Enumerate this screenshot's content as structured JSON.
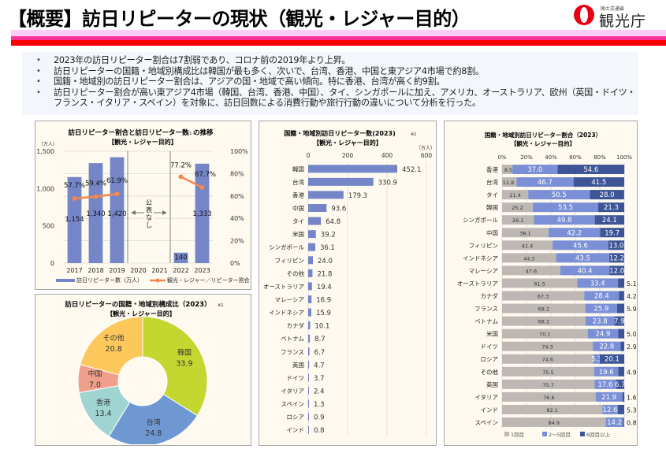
{
  "header": {
    "title": "【概要】訪日リピーターの現状（観光・レジャー目的）",
    "logo_small": "国土交通省",
    "logo_main": "観光庁",
    "accent_colors": {
      "band_light": "#ffccf5",
      "band_mid": "#ff3399",
      "band_red": "#ff0000",
      "logo_red": "#e60012"
    }
  },
  "summary": {
    "bullets": [
      "2023年の訪日リピーター割合は7割弱であり、コロナ前の2019年より上昇。",
      "訪日リピーターの国籍・地域別構成比は韓国が最も多く、次いで、台湾、香港、中国と東アジア4市場で約8割。",
      "国籍・地域別の訪日リピーター割合は、アジアの国・地域で高い傾向。特に香港、台湾が高く約9割。",
      "訪日リピーター割合が高い東アジア4市場（韓国、台湾、香港、中国）、タイ、シンガポールに加え、アメリカ、オーストラリア、欧州（英国・ドイツ・フランス・イタリア・スペイン）を対象に、訪日回数による消費行動や旅行行動の違いについて分析を行った。"
    ]
  },
  "chart_data": [
    {
      "id": "trend",
      "type": "bar+line",
      "title": "訪日リピーター割合と訪日リピーター数",
      "title_note": "※1",
      "subtitle": "の推移",
      "subtitle2": "【観光・レジャー目的】",
      "categories": [
        "2017",
        "2018",
        "2019",
        "2020",
        "2021",
        "2022",
        "2023"
      ],
      "series": [
        {
          "name": "訪日リピーター数（万人）",
          "type": "bar",
          "axis": "left",
          "color": "#7586c8",
          "values": [
            1154,
            1340,
            1420,
            null,
            null,
            140,
            1333
          ],
          "labels": [
            "1,154",
            "1,340",
            "1,420",
            "",
            "",
            "140",
            "1,333"
          ]
        },
        {
          "name": "観光・レジャー／リピーター割合",
          "type": "line",
          "axis": "right",
          "color": "#f4884d",
          "values": [
            57.7,
            59.4,
            61.9,
            null,
            null,
            77.2,
            67.7
          ],
          "labels": [
            "57.7%",
            "59.4%",
            "61.9%",
            "",
            "",
            "77.2%",
            "67.7%"
          ]
        }
      ],
      "left_axis": {
        "unit": "（万人）",
        "ylim": [
          0,
          1500
        ],
        "ticks": [
          "0",
          "500",
          "1,000",
          "1,500"
        ]
      },
      "right_axis": {
        "ylim": [
          0,
          100
        ],
        "ticks": [
          "0%",
          "20%",
          "40%",
          "60%",
          "80%",
          "100%"
        ]
      },
      "annotation": "公表なし",
      "grid": true,
      "legend": "bottom"
    },
    {
      "id": "donut",
      "type": "pie",
      "title": "訪日リピーターの国籍・地域別構成比（2023）",
      "title_note": "※1",
      "subtitle": "【観光・レジャー目的】",
      "slices": [
        {
          "label": "韓国",
          "value": 33.9,
          "color": "#c4d630"
        },
        {
          "label": "台湾",
          "value": 24.8,
          "color": "#6f98d2"
        },
        {
          "label": "香港",
          "value": 13.4,
          "color": "#9fd4d0"
        },
        {
          "label": "中国",
          "value": 7.0,
          "color": "#f0a08a"
        },
        {
          "label": "その他",
          "value": 20.8,
          "color": "#fcc85c"
        }
      ]
    },
    {
      "id": "hbar",
      "type": "bar",
      "orientation": "horizontal",
      "title": "国籍・地域別訪日リピーター数(2023)",
      "title_note": "※1",
      "subtitle": "【観光・レジャー目的】",
      "unit": "（万人）",
      "xlim": [
        0,
        600
      ],
      "ticks": [
        "0",
        "200",
        "400",
        "600"
      ],
      "color": "#7586c8",
      "categories": [
        "韓国",
        "台湾",
        "香港",
        "中国",
        "タイ",
        "米国",
        "シンガポール",
        "フィリピン",
        "その他",
        "オーストラリア",
        "マレーシア",
        "インドネシア",
        "カナダ",
        "ベトナム",
        "フランス",
        "英国",
        "ドイツ",
        "イタリア",
        "スペイン",
        "ロシア",
        "インド"
      ],
      "values": [
        452.1,
        330.9,
        179.3,
        93.6,
        64.8,
        39.2,
        36.1,
        24.0,
        21.8,
        19.4,
        16.9,
        15.9,
        10.1,
        8.7,
        6.7,
        4.7,
        3.7,
        2.4,
        1.3,
        0.9,
        0.8
      ],
      "labels": [
        "452.1",
        "330.9",
        "179.3",
        "93.6",
        "64.8",
        "39.2",
        "36.1",
        "24.0",
        "21.8",
        "19.4",
        "16.9",
        "15.9",
        "10.1",
        "8.7",
        "6.7",
        "4.7",
        "3.7",
        "2.4",
        "1.3",
        "0.9",
        "0.8"
      ],
      "grid": true
    },
    {
      "id": "stacked",
      "type": "bar",
      "orientation": "horizontal",
      "stacked": true,
      "title": "国籍・地域別訪日リピーター割合（2023）",
      "subtitle": "【観光・レジャー目的】",
      "xlim": [
        0,
        100
      ],
      "ticks": [
        "0%",
        "20%",
        "40%",
        "60%",
        "80%",
        "100%"
      ],
      "categories": [
        "香港",
        "台湾",
        "タイ",
        "韓国",
        "シンガポール",
        "中国",
        "フィリピン",
        "インドネシア",
        "マレーシア",
        "オーストラリア",
        "カナダ",
        "フランス",
        "ベトナム",
        "米国",
        "ドイツ",
        "ロシア",
        "その他",
        "英国",
        "イタリア",
        "インド",
        "スペイン"
      ],
      "series": [
        {
          "name": "1回目",
          "color": "#bdb8b4",
          "values": [
            8.5,
            11.8,
            21.4,
            25.2,
            26.1,
            38.1,
            41.4,
            44.3,
            47.6,
            61.5,
            67.3,
            68.2,
            68.2,
            70.1,
            74.3,
            74.6,
            75.5,
            75.7,
            76.6,
            82.1,
            84.9
          ]
        },
        {
          "name": "2～5回目",
          "color": "#7a8fd6",
          "values": [
            37.0,
            46.7,
            50.5,
            53.5,
            49.8,
            42.2,
            45.6,
            43.5,
            40.4,
            33.4,
            28.4,
            25.9,
            23.8,
            24.9,
            22.8,
            5.3,
            19.6,
            17.6,
            21.9,
            12.6,
            14.2
          ]
        },
        {
          "name": "6回目以上",
          "color": "#3d5596",
          "values": [
            54.6,
            41.5,
            28.0,
            21.3,
            24.1,
            19.7,
            13.0,
            12.2,
            12.0,
            5.1,
            4.2,
            5.9,
            7.9,
            5.0,
            2.9,
            20.1,
            4.9,
            6.7,
            1.6,
            5.3,
            0.8
          ]
        }
      ],
      "legend": "bottom",
      "grid": true
    }
  ]
}
